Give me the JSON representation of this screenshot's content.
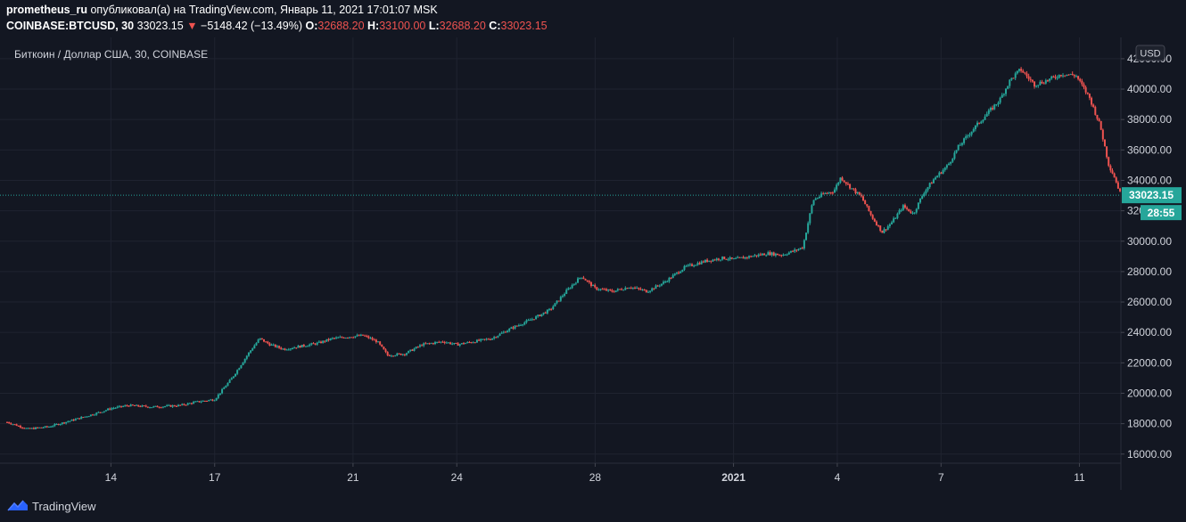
{
  "header": {
    "author": "prometheus_ru",
    "published_text": "опубликовал(а) на TradingView.com, Январь 11, 2021 17:01:07 MSK",
    "symbol": "COINBASE:BTCUSD, 30",
    "last_price": "33023.15",
    "change_arrow": "▼",
    "change": "−5148.42 (−13.49%)",
    "ohlc": {
      "o_label": "O:",
      "o": "32688.20",
      "h_label": "H:",
      "h": "33100.00",
      "l_label": "L:",
      "l": "32688.20",
      "c_label": "C:",
      "c": "33023.15"
    }
  },
  "chart": {
    "title": "Биткоин / Доллар США, 30, COINBASE",
    "currency_button": "USD",
    "price_tag": "33023.15",
    "countdown_tag": "28:55"
  },
  "footer": {
    "brand": "TradingView"
  },
  "colors": {
    "background": "#131722",
    "grid": "#1f2330",
    "up": "#26a69a",
    "down": "#ef5350",
    "text": "#d1d4dc",
    "price_line": "#26a69a"
  },
  "chart_data": {
    "type": "candlestick",
    "title": "Биткоин / Доллар США, 30, COINBASE",
    "currency": "USD",
    "interval": "30",
    "ylim": [
      15400,
      43400
    ],
    "y_ticks": [
      "16000.00",
      "18000.00",
      "20000.00",
      "22000.00",
      "24000.00",
      "26000.00",
      "28000.00",
      "30000.00",
      "32000.00",
      "34000.00",
      "36000.00",
      "38000.00",
      "40000.00",
      "42000.00"
    ],
    "x_ticks": [
      "14",
      "17",
      "21",
      "24",
      "28",
      "2021",
      "4",
      "7",
      "11"
    ],
    "x_tick_days": [
      3,
      6,
      10,
      13,
      17,
      21,
      24,
      27,
      31
    ],
    "x_domain_days": [
      0.0,
      32.2
    ],
    "grid": true,
    "last_price": 33023.15,
    "series": [
      {
        "name": "BTCUSD",
        "anchors": [
          [
            0.0,
            18100
          ],
          [
            0.6,
            17650
          ],
          [
            1.2,
            17800
          ],
          [
            2.0,
            18300
          ],
          [
            2.6,
            18700
          ],
          [
            3.0,
            19000
          ],
          [
            3.5,
            19200
          ],
          [
            4.2,
            19100
          ],
          [
            5.0,
            19200
          ],
          [
            5.4,
            19400
          ],
          [
            6.0,
            19600
          ],
          [
            6.5,
            21000
          ],
          [
            7.0,
            22700
          ],
          [
            7.3,
            23600
          ],
          [
            7.6,
            23200
          ],
          [
            8.0,
            22900
          ],
          [
            8.5,
            23100
          ],
          [
            9.0,
            23300
          ],
          [
            9.4,
            23600
          ],
          [
            9.8,
            23700
          ],
          [
            10.3,
            23800
          ],
          [
            10.7,
            23400
          ],
          [
            11.0,
            22500
          ],
          [
            11.5,
            22600
          ],
          [
            12.0,
            23200
          ],
          [
            12.6,
            23400
          ],
          [
            13.0,
            23200
          ],
          [
            13.5,
            23400
          ],
          [
            14.0,
            23600
          ],
          [
            14.6,
            24300
          ],
          [
            15.2,
            24900
          ],
          [
            15.7,
            25500
          ],
          [
            16.2,
            26800
          ],
          [
            16.6,
            27700
          ],
          [
            17.0,
            26900
          ],
          [
            17.5,
            26700
          ],
          [
            18.0,
            27000
          ],
          [
            18.5,
            26700
          ],
          [
            19.0,
            27300
          ],
          [
            19.6,
            28300
          ],
          [
            20.2,
            28700
          ],
          [
            20.7,
            28900
          ],
          [
            21.0,
            28800
          ],
          [
            21.5,
            29000
          ],
          [
            22.0,
            29200
          ],
          [
            22.4,
            29100
          ],
          [
            22.8,
            29400
          ],
          [
            23.0,
            29600
          ],
          [
            23.3,
            32700
          ],
          [
            23.6,
            33100
          ],
          [
            23.9,
            33300
          ],
          [
            24.1,
            34200
          ],
          [
            24.4,
            33500
          ],
          [
            24.7,
            32900
          ],
          [
            25.0,
            31600
          ],
          [
            25.3,
            30600
          ],
          [
            25.6,
            31300
          ],
          [
            25.9,
            32300
          ],
          [
            26.2,
            31800
          ],
          [
            26.5,
            33200
          ],
          [
            26.8,
            34100
          ],
          [
            27.2,
            35000
          ],
          [
            27.5,
            36200
          ],
          [
            27.9,
            37300
          ],
          [
            28.3,
            38300
          ],
          [
            28.7,
            39300
          ],
          [
            29.0,
            40600
          ],
          [
            29.3,
            41300
          ],
          [
            29.7,
            40300
          ],
          [
            30.1,
            40600
          ],
          [
            30.5,
            41000
          ],
          [
            30.9,
            40900
          ],
          [
            31.3,
            39400
          ],
          [
            31.6,
            37600
          ],
          [
            31.85,
            35000
          ],
          [
            32.0,
            34300
          ],
          [
            32.2,
            33023
          ]
        ]
      }
    ]
  }
}
